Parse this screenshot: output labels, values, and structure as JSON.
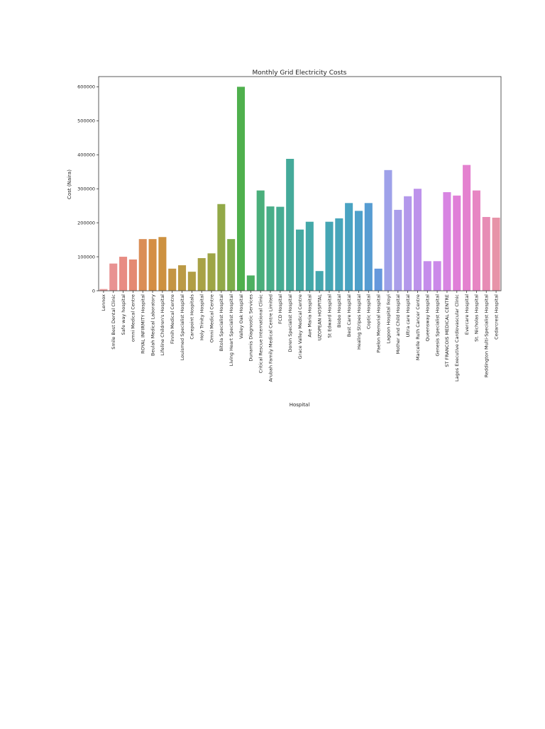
{
  "chart_data": {
    "type": "bar",
    "title": "Monthly Grid Electricity Costs",
    "xlabel": "Hospital",
    "ylabel": "Cost (Naira)",
    "ylim": [
      0,
      630000
    ],
    "yticks": [
      0,
      100000,
      200000,
      300000,
      400000,
      500000,
      600000
    ],
    "ytick_labels": [
      "0",
      "100000",
      "200000",
      "300000",
      "400000",
      "500000",
      "600000"
    ],
    "legend": "none",
    "grid": false,
    "categories": [
      "Lennox",
      "Smile Best Dental Clinic",
      "Safe way hospital",
      "omni Medical Centre",
      "ROYAL INFIRMITY  Hospital",
      "Beulah Medical Laboratory",
      "Lifeline Children's Hospital",
      "Finnih Medical Centre",
      "Louismed Specialist Hospital",
      "Carepoint Hospitals",
      "Holy Trinity Hospital",
      "Omni Medical Centre",
      "Bitola Specialist Hospital",
      "Living Heart Specialist Hospital",
      "Valley Oak Hospital",
      "Dunamis Diagnostic Services",
      "Critical Rescue International Clinic",
      "Arubah Family Medical Centre Limited",
      "FCD Hospital",
      "Doren Specialist Hospital",
      "Grace Valley Medical Centre",
      "Ave Maria Hospital",
      "UZOPEAN HOSPITAL",
      "St Edward Hospital",
      "Biobo Hospital",
      "Best Care Hospital",
      "Healing Stripes Hospital",
      "Coptic Hospital",
      "Paelon Memorial Hospital",
      "Lagoon Hospital Ikoyi",
      "Mother and Child Hospital",
      "Ultra care Hospital",
      "Marcelle Ruth Cancer Centre",
      "Queensway Hospital",
      "Genesis Specialist Hospital",
      "ST FRANCOIS MEDICAL CENTRE",
      "Lagos Executive Cardiovascular Clinic",
      "Evercare Hospital",
      "St. Nicholas Hospital",
      "Reddington Multi-Specialist Hospital",
      "Cedarcrest Hospital"
    ],
    "values": [
      5000,
      80000,
      100000,
      92000,
      152000,
      152000,
      158000,
      65000,
      75000,
      56000,
      96000,
      110000,
      255000,
      152000,
      600000,
      45000,
      295000,
      248000,
      247000,
      388000,
      180000,
      203000,
      58000,
      203000,
      213000,
      258000,
      235000,
      258000,
      65000,
      355000,
      238000,
      278000,
      300000,
      87000,
      87000,
      290000,
      280000,
      370000,
      295000,
      217000,
      215000
    ],
    "colors": [
      "#e89999",
      "#e89292",
      "#e88c83",
      "#e48a72",
      "#da8e56",
      "#d48e44",
      "#cd9140",
      "#c49544",
      "#bb9a45",
      "#b19e45",
      "#a8a246",
      "#9ea546",
      "#92a948",
      "#7dad4a",
      "#4fb04d",
      "#4db061",
      "#4aaf7b",
      "#48ae89",
      "#46ac92",
      "#45aa9a",
      "#44a9a1",
      "#43a8a8",
      "#44a7ae",
      "#45a6b4",
      "#47a5ba",
      "#49a3c2",
      "#4ea0ca",
      "#569cd2",
      "#6598dc",
      "#9ea1e9",
      "#aa9eea",
      "#b398eb",
      "#bd92eb",
      "#c58deb",
      "#cb89e9",
      "#d885e2",
      "#e07fd8",
      "#e481cf",
      "#e785c3",
      "#e78cb5",
      "#e793a8"
    ]
  }
}
